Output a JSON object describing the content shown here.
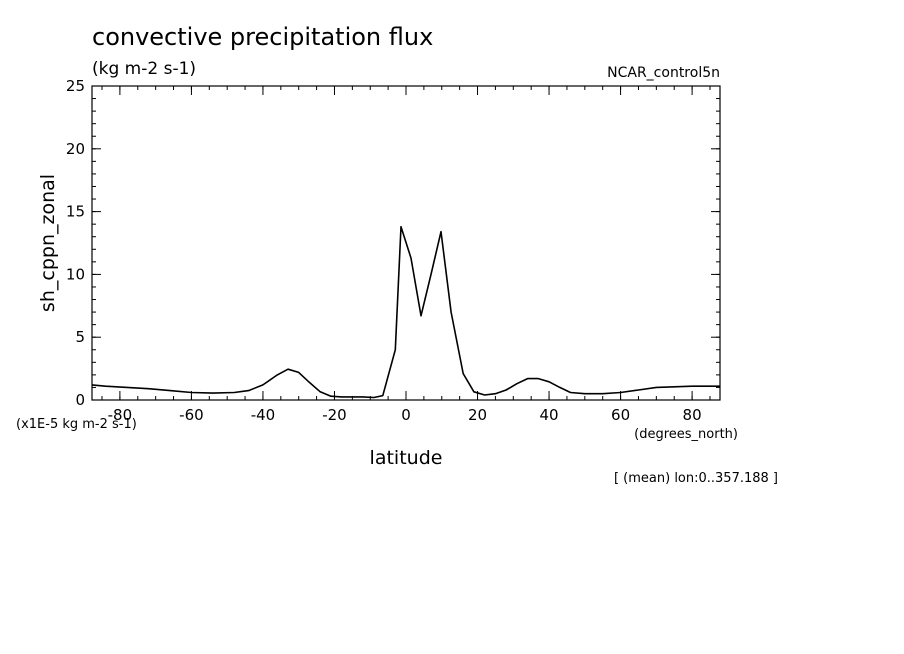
{
  "chart_data": {
    "type": "line",
    "title": "convective precipitation flux",
    "units": "(kg m-2 s-1)",
    "dataset": "NCAR_control5n",
    "ylabel": "sh_cppn_zonal",
    "xlabel": "latitude",
    "x_units": "(degrees_north)",
    "y_scale_note": "(x1E-5 kg m-2 s-1)",
    "footnote": "[ (mean) lon:0..357.188 ]",
    "xlim": [
      -87.8,
      87.8
    ],
    "ylim": [
      0,
      25
    ],
    "x_ticks": [
      -80,
      -60,
      -40,
      -20,
      0,
      20,
      40,
      60,
      80
    ],
    "y_ticks": [
      0,
      5,
      10,
      15,
      20,
      25
    ],
    "x_tick_labels": [
      "-80",
      "-60",
      "-40",
      "-20",
      "0",
      "20",
      "40",
      "60",
      "80"
    ],
    "y_tick_labels": [
      "0",
      "5",
      "10",
      "15",
      "20",
      "25"
    ],
    "series": [
      {
        "x": [
          -87.8,
          -84,
          -78,
          -72,
          -66,
          -60,
          -54,
          -48,
          -44,
          -40,
          -36,
          -33,
          -30,
          -27,
          -24,
          -21,
          -18,
          -15,
          -12,
          -9,
          -6.5,
          -3,
          -1.4,
          1.4,
          4.2,
          7,
          9.8,
          12.6,
          16,
          19,
          22,
          25,
          28,
          31,
          34,
          37,
          40,
          43,
          46,
          50,
          55,
          60,
          65,
          70,
          75,
          80,
          87.8
        ],
        "y": [
          1.2,
          1.1,
          1.0,
          0.9,
          0.75,
          0.6,
          0.55,
          0.6,
          0.75,
          1.2,
          2.0,
          2.45,
          2.2,
          1.4,
          0.65,
          0.3,
          0.25,
          0.25,
          0.25,
          0.2,
          0.35,
          4.0,
          13.8,
          11.3,
          6.7,
          10.0,
          13.4,
          7.0,
          2.1,
          0.65,
          0.4,
          0.5,
          0.8,
          1.3,
          1.7,
          1.7,
          1.45,
          1.0,
          0.6,
          0.5,
          0.5,
          0.6,
          0.8,
          1.0,
          1.05,
          1.1,
          1.1
        ],
        "color": "#000000"
      }
    ],
    "grid": false,
    "line_color": "#000000"
  }
}
